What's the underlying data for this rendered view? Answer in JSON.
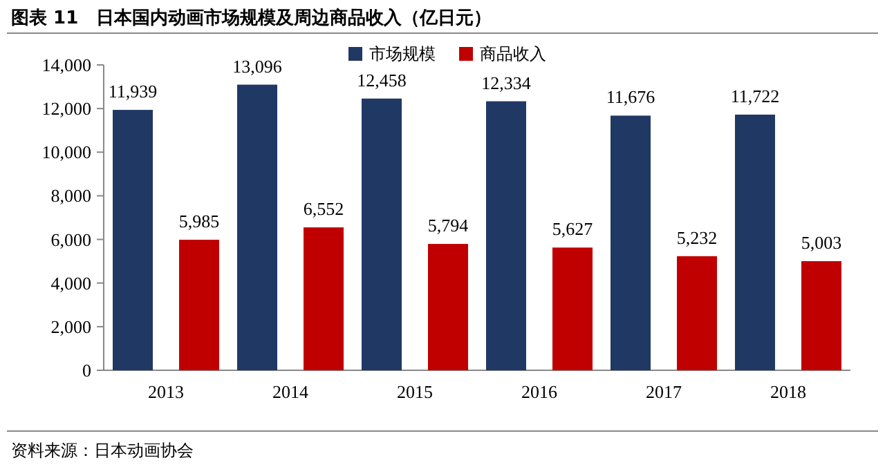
{
  "chart_data": {
    "type": "bar",
    "title": "图表 11　日本国内动画市场规模及周边商品收入（亿日元）",
    "annotations": [
      "资料来源：日本动画协会"
    ],
    "categories": [
      "2013",
      "2014",
      "2015",
      "2016",
      "2017",
      "2018"
    ],
    "series": [
      {
        "name": "市场规模",
        "color": "#203864",
        "values": [
          11939,
          13096,
          12458,
          12334,
          11676,
          11722
        ],
        "value_labels": [
          "11,939",
          "13,096",
          "12,458",
          "12,334",
          "11,676",
          "11,722"
        ]
      },
      {
        "name": "商品收入",
        "color": "#c00000",
        "values": [
          5985,
          6552,
          5794,
          5627,
          5232,
          5003
        ],
        "value_labels": [
          "5,985",
          "6,552",
          "5,794",
          "5,627",
          "5,232",
          "5,003"
        ]
      }
    ],
    "ylim": [
      0,
      14000
    ],
    "yticks": [
      {
        "value": 0,
        "label": "0"
      },
      {
        "value": 2000,
        "label": "2,000"
      },
      {
        "value": 4000,
        "label": "4,000"
      },
      {
        "value": 6000,
        "label": "6,000"
      },
      {
        "value": 8000,
        "label": "8,000"
      },
      {
        "value": 10000,
        "label": "10,000"
      },
      {
        "value": 12000,
        "label": "12,000"
      },
      {
        "value": 14000,
        "label": "14,000"
      }
    ],
    "legend": "top"
  }
}
